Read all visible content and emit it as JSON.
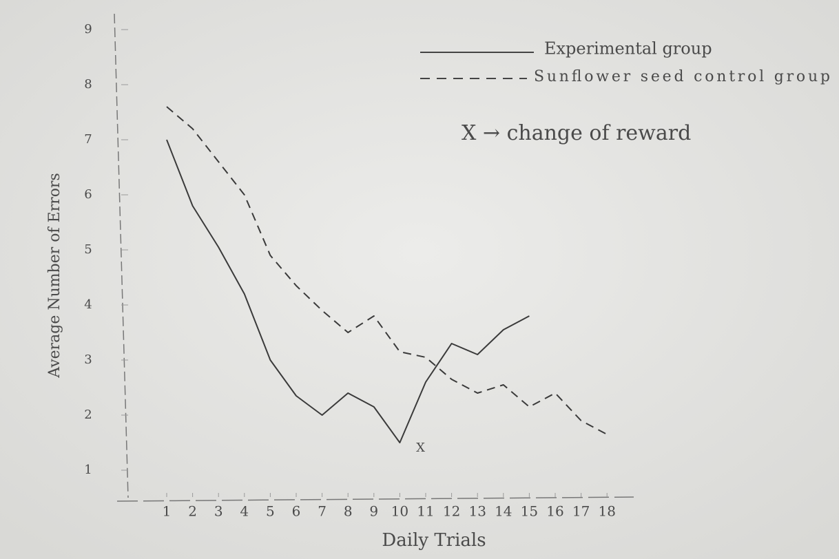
{
  "chart_data": {
    "type": "line",
    "x_label": "Daily Trials",
    "y_label": "Average Number of Errors",
    "x": [
      1,
      2,
      3,
      4,
      5,
      6,
      7,
      8,
      9,
      10,
      11,
      12,
      13,
      14,
      15,
      16,
      17,
      18
    ],
    "series": [
      {
        "name": "Experimental group",
        "color": "#3a3a3a",
        "dash": false,
        "values": [
          7.0,
          5.8,
          5.05,
          4.2,
          3.0,
          2.35,
          2.0,
          2.4,
          2.15,
          1.5,
          2.6,
          3.3,
          3.1,
          3.55,
          3.8,
          null,
          null,
          null
        ]
      },
      {
        "name": "Sunflower seed control group",
        "color": "#3a3a3a",
        "dash": true,
        "values": [
          7.6,
          7.2,
          6.6,
          6.0,
          4.9,
          4.35,
          3.9,
          3.5,
          3.8,
          3.15,
          3.05,
          2.65,
          2.4,
          2.55,
          2.15,
          2.4,
          1.9,
          1.65
        ]
      }
    ],
    "legend_note": "X → change of reward",
    "annotation": "X",
    "xlim": [
      -1,
      19
    ],
    "xticks": [
      1,
      2,
      3,
      4,
      5,
      6,
      7,
      8,
      9,
      10,
      11,
      12,
      13,
      14,
      15,
      16,
      17,
      18
    ],
    "ylim": [
      0.5,
      9.5
    ],
    "yticks": [
      1,
      2,
      3,
      4,
      5,
      6,
      7,
      8,
      9
    ]
  }
}
